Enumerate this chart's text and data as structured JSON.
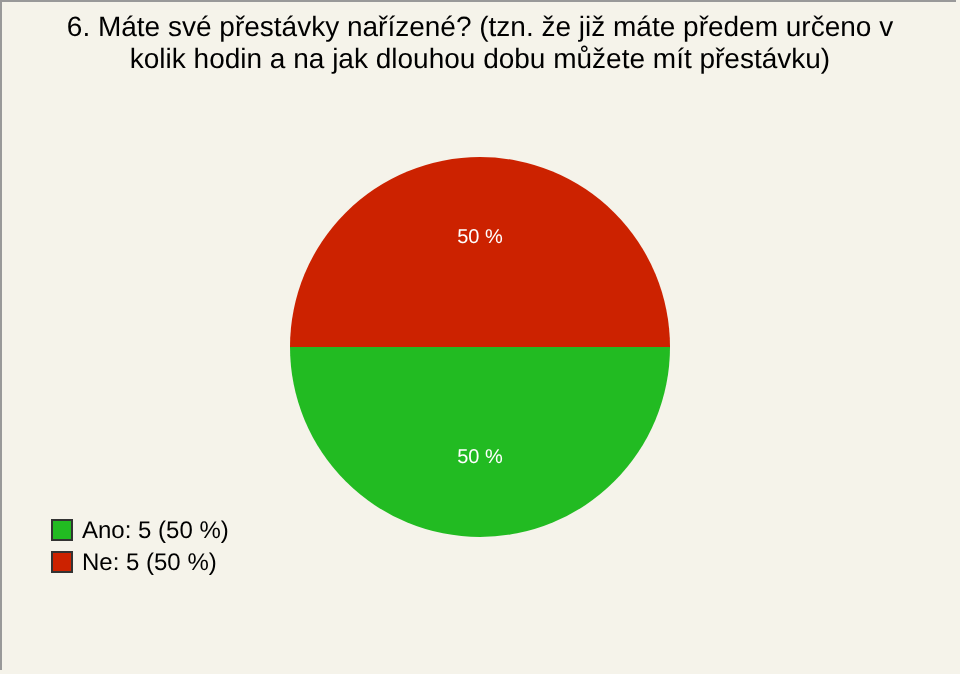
{
  "chart_data": {
    "type": "pie",
    "title": "6. Máte své přestávky nařízené? (tzn. že již máte předem určeno v kolik hodin a na jak dlouhou dobu můžete mít přestávku)",
    "categories": [
      "Ano: 5 (50 %)",
      "Ne: 5 (50 %)"
    ],
    "values": [
      50,
      50
    ],
    "colors": [
      "#22bb22",
      "#cc2200"
    ],
    "value_labels": [
      "50 %",
      "50 %"
    ],
    "legend": "bottom left"
  }
}
